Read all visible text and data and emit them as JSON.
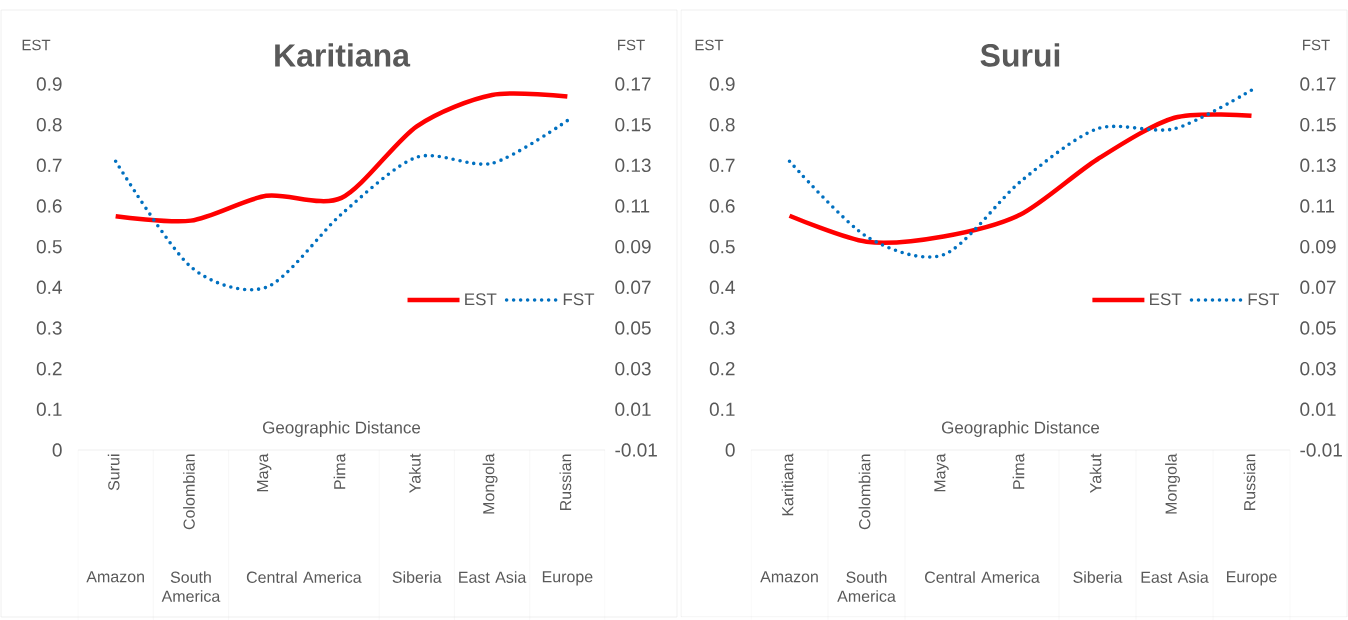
{
  "chart_data": [
    {
      "type": "line",
      "title": "Karitiana",
      "xlabel": "Geographic Distance",
      "ylabel": "EST",
      "y2label": "FST",
      "categories": [
        "Surui",
        "Colombian",
        "Maya",
        "Pima",
        "Yakut",
        "Mongola",
        "Russian"
      ],
      "series": [
        {
          "name": "EST",
          "color": "#ff0000",
          "line_style": "solid",
          "values": [
            0.575,
            0.564,
            0.625,
            0.62,
            0.796,
            0.873,
            0.869
          ]
        },
        {
          "name": "FST",
          "color": "#0070c0",
          "line_style": "dotted",
          "axis": "y2",
          "values": [
            0.132,
            0.08,
            0.07,
            0.106,
            0.134,
            0.131,
            0.152
          ]
        }
      ],
      "ylim": [
        0,
        0.9
      ],
      "yticks": [
        0,
        0.1,
        0.2,
        0.3,
        0.4,
        0.5,
        0.6,
        0.7,
        0.8,
        0.9
      ],
      "y2lim": [
        -0.01,
        0.17
      ],
      "y2ticks": [
        -0.01,
        0.01,
        0.03,
        0.05,
        0.07,
        0.09,
        0.11,
        0.13,
        0.15,
        0.17
      ],
      "legend": "right",
      "annotations": [
        "Amazon",
        "South America",
        "Central America",
        "Siberia",
        "East Asia",
        "Europe"
      ]
    },
    {
      "type": "line",
      "title": "Surui",
      "xlabel": "Geographic Distance",
      "ylabel": "EST",
      "y2label": "FST",
      "categories": [
        "Karitiana",
        "Colombian",
        "Maya",
        "Pima",
        "Yakut",
        "Mongola",
        "Russian"
      ],
      "series": [
        {
          "name": "EST",
          "color": "#ff0000",
          "line_style": "solid",
          "values": [
            0.576,
            0.512,
            0.525,
            0.579,
            0.715,
            0.817,
            0.822
          ]
        },
        {
          "name": "FST",
          "color": "#0070c0",
          "line_style": "dotted",
          "axis": "y2",
          "values": [
            0.132,
            0.095,
            0.086,
            0.122,
            0.148,
            0.148,
            0.167
          ]
        }
      ],
      "ylim": [
        0,
        0.9
      ],
      "yticks": [
        0,
        0.1,
        0.2,
        0.3,
        0.4,
        0.5,
        0.6,
        0.7,
        0.8,
        0.9
      ],
      "y2lim": [
        -0.01,
        0.17
      ],
      "y2ticks": [
        -0.01,
        0.01,
        0.03,
        0.05,
        0.07,
        0.09,
        0.11,
        0.13,
        0.15,
        0.17
      ],
      "legend": "right",
      "annotations": [
        "Amazon",
        "South America",
        "Central America",
        "Siberia",
        "East Asia",
        "Europe"
      ]
    }
  ]
}
